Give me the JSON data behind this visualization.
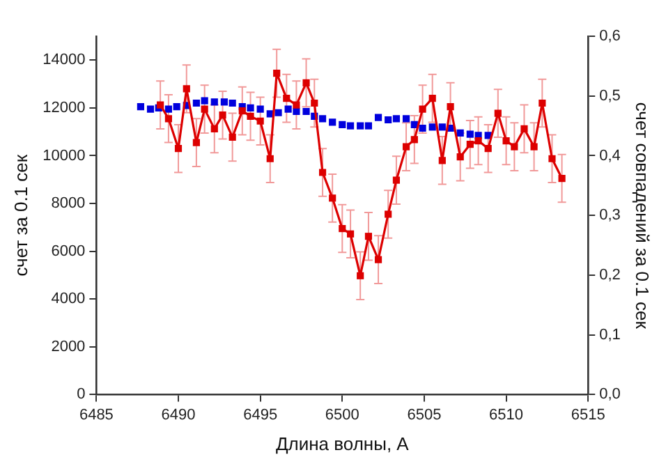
{
  "chart_data": {
    "type": "line",
    "xlabel": "Длина волны, А",
    "ylabel": "счет за 0.1 сек",
    "y2label": "счет совпадений за 0.1 сек",
    "xlim": [
      6485,
      6515
    ],
    "xticks": [
      6485,
      6490,
      6495,
      6500,
      6505,
      6510,
      6515
    ],
    "ylim": [
      0,
      15000
    ],
    "yticks": [
      0,
      2000,
      4000,
      6000,
      8000,
      10000,
      12000,
      14000
    ],
    "y2lim": [
      0,
      0.6
    ],
    "y2ticks": [
      {
        "value": 0,
        "label": "0,0"
      },
      {
        "value": 0.1,
        "label": "0,1"
      },
      {
        "value": 0.2,
        "label": "0,2"
      },
      {
        "value": 0.3,
        "label": "0,3"
      },
      {
        "value": 0.4,
        "label": "0,4"
      },
      {
        "value": 0.5,
        "label": "0,5"
      },
      {
        "value": 0.6,
        "label": "0,6"
      }
    ],
    "grid": false,
    "legend": false,
    "marker": "square",
    "line_style": "solid",
    "series": [
      {
        "type": "scatter",
        "color": "#0000dd",
        "axis": "y",
        "x": [
          6487.7,
          6488.3,
          6488.8,
          6489.4,
          6489.9,
          6490.5,
          6491.1,
          6491.6,
          6492.2,
          6492.8,
          6493.3,
          6493.9,
          6494.4,
          6495.0,
          6495.6,
          6496.1,
          6496.7,
          6497.2,
          6497.8,
          6498.3,
          6498.8,
          6499.4,
          6500.0,
          6500.5,
          6501.1,
          6501.6,
          6502.2,
          6502.8,
          6503.3,
          6503.9,
          6504.4,
          6504.9,
          6505.5,
          6506.1,
          6506.6,
          6507.2,
          6507.8,
          6508.3,
          6508.9
        ],
        "values": [
          12050,
          11950,
          12000,
          11950,
          12050,
          12100,
          12200,
          12300,
          12250,
          12250,
          12200,
          12050,
          12000,
          11950,
          11750,
          11800,
          11950,
          11850,
          11850,
          11650,
          11550,
          11400,
          11300,
          11250,
          11250,
          11250,
          11600,
          11500,
          11550,
          11550,
          11300,
          11150,
          11200,
          11200,
          11150,
          10950,
          10900,
          10850,
          10850
        ]
      },
      {
        "type": "line",
        "color": "#dd0000",
        "axis": "y2",
        "x": [
          6488.9,
          6489.4,
          6490.0,
          6490.5,
          6491.1,
          6491.6,
          6492.2,
          6492.7,
          6493.3,
          6493.9,
          6494.4,
          6495.0,
          6495.6,
          6496.0,
          6496.6,
          6497.2,
          6497.8,
          6498.3,
          6498.8,
          6499.4,
          6500.0,
          6500.5,
          6501.1,
          6501.6,
          6502.2,
          6502.8,
          6503.3,
          6503.9,
          6504.4,
          6504.9,
          6505.5,
          6506.1,
          6506.6,
          6507.2,
          6507.8,
          6508.3,
          6508.9,
          6509.5,
          6510.0,
          6510.5,
          6511.1,
          6511.7,
          6512.2,
          6512.8,
          6513.4
        ],
        "values": [
          0.485,
          0.462,
          0.412,
          0.512,
          0.422,
          0.478,
          0.445,
          0.468,
          0.431,
          0.475,
          0.466,
          0.458,
          0.395,
          0.538,
          0.496,
          0.485,
          0.522,
          0.488,
          0.372,
          0.329,
          0.278,
          0.269,
          0.199,
          0.265,
          0.226,
          0.302,
          0.359,
          0.415,
          0.427,
          0.478,
          0.496,
          0.392,
          0.482,
          0.398,
          0.419,
          0.425,
          0.412,
          0.471,
          0.425,
          0.415,
          0.445,
          0.415,
          0.488,
          0.395,
          0.362
        ],
        "errors": [
          0.04,
          0.04,
          0.04,
          0.04,
          0.04,
          0.04,
          0.04,
          0.04,
          0.04,
          0.04,
          0.04,
          0.04,
          0.04,
          0.04,
          0.04,
          0.04,
          0.04,
          0.04,
          0.04,
          0.04,
          0.04,
          0.04,
          0.04,
          0.04,
          0.04,
          0.04,
          0.04,
          0.04,
          0.04,
          0.04,
          0.04,
          0.04,
          0.04,
          0.04,
          0.04,
          0.04,
          0.04,
          0.04,
          0.04,
          0.04,
          0.04,
          0.04,
          0.04,
          0.04,
          0.04
        ]
      }
    ]
  }
}
